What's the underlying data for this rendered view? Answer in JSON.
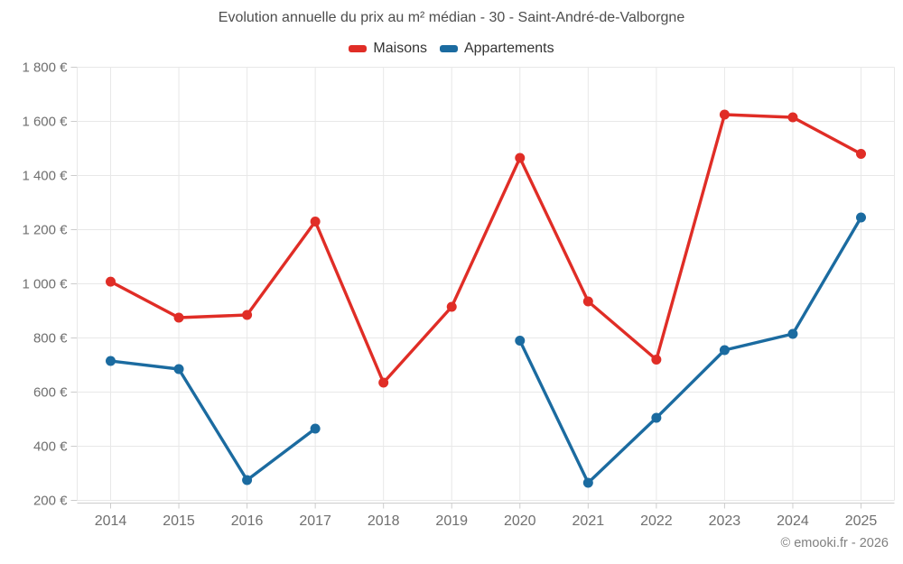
{
  "chart_data": {
    "type": "line",
    "title": "Evolution annuelle du prix au m² médian - 30 - Saint-André-de-Valborgne",
    "categories": [
      "2014",
      "2015",
      "2016",
      "2017",
      "2018",
      "2019",
      "2020",
      "2021",
      "2022",
      "2023",
      "2024",
      "2025"
    ],
    "series": [
      {
        "name": "Maisons",
        "color": "#e02d26",
        "values": [
          1008,
          875,
          885,
          1230,
          635,
          915,
          1465,
          935,
          720,
          1625,
          1615,
          1480
        ]
      },
      {
        "name": "Appartements",
        "color": "#1b6ba0",
        "values": [
          715,
          685,
          275,
          465,
          null,
          null,
          790,
          265,
          505,
          755,
          815,
          1245
        ]
      }
    ],
    "xlabel": "",
    "ylabel": "",
    "ylim": [
      200,
      1800
    ],
    "y_ticks": [
      200,
      400,
      600,
      800,
      1000,
      1200,
      1400,
      1600,
      1800
    ],
    "y_tick_labels": [
      "200 €",
      "400 €",
      "600 €",
      "800 €",
      "1 000 €",
      "1 200 €",
      "1 400 €",
      "1 600 €",
      "1 800 €"
    ],
    "grid": true,
    "legend_position": "top",
    "credit": "© emooki.fr - 2026"
  },
  "style": {
    "grid_color": "#e8e8e8",
    "axis_line_color": "#cccccc",
    "tick_label_color": "#6f6f6f",
    "title_color": "#4d4d4d",
    "background": "#ffffff"
  }
}
